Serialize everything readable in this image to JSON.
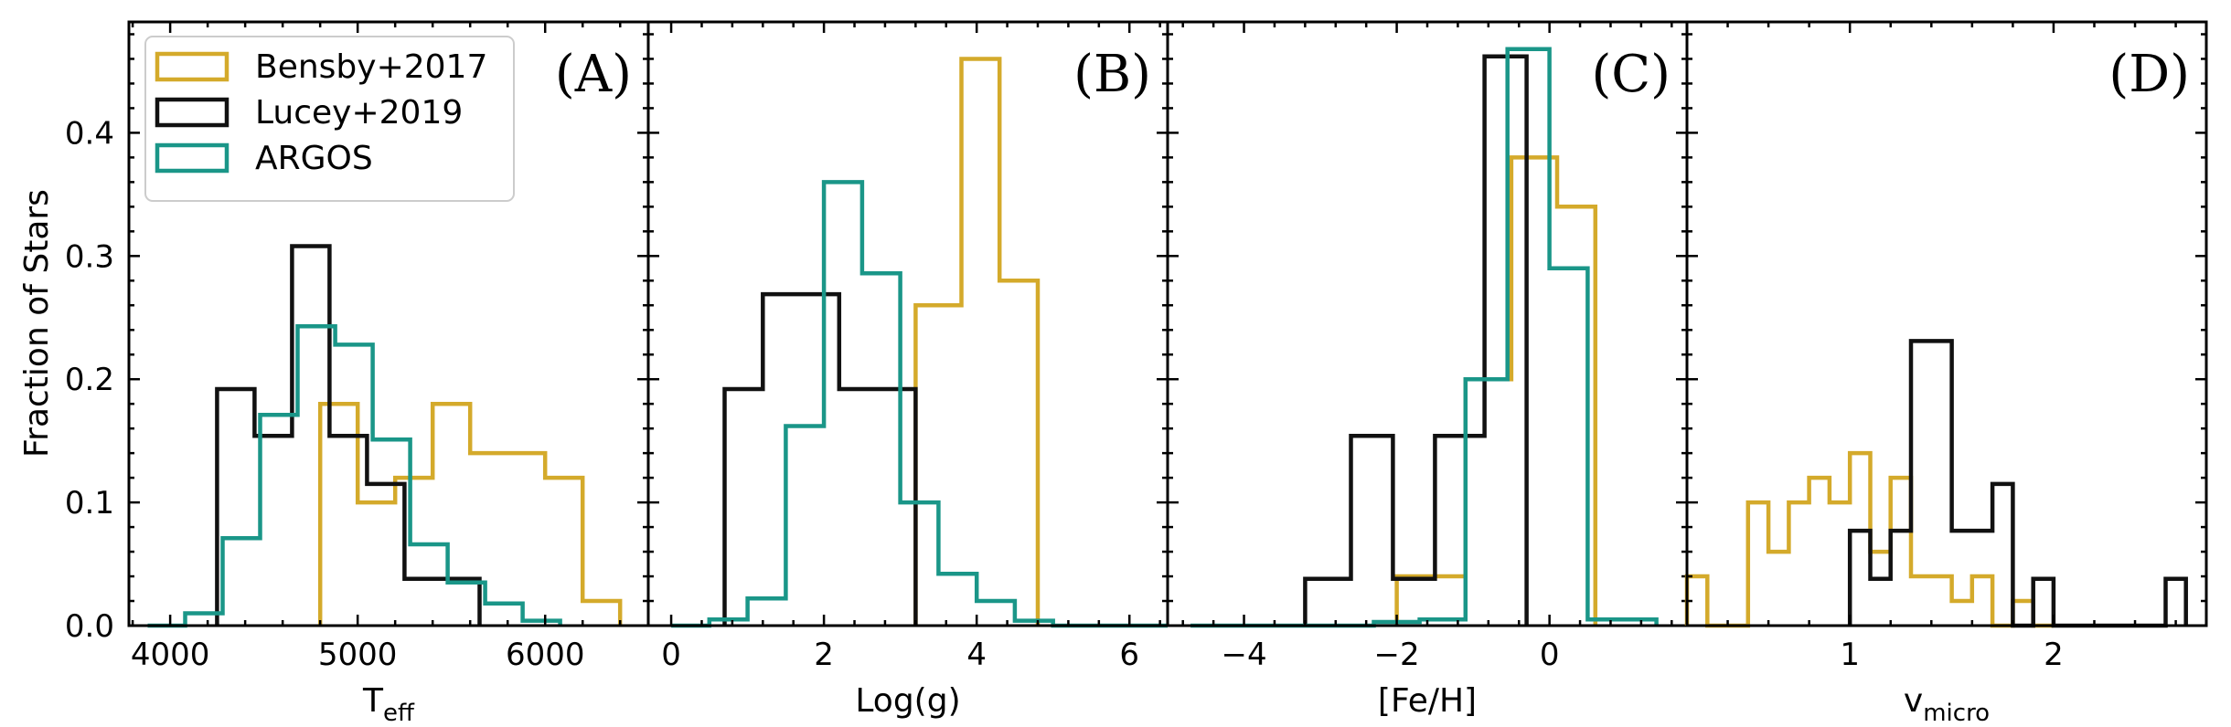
{
  "figure": {
    "ylabel": "Fraction of Stars",
    "colors": {
      "Bensby+2017": "#d4aa2b",
      "Lucey+2019": "#111111",
      "ARGOS": "#1a9688"
    },
    "legend": {
      "placement": "upper-left of panel A",
      "entries": [
        "Bensby+2017",
        "Lucey+2019",
        "ARGOS"
      ]
    }
  },
  "chart_data": [
    {
      "type": "histogram",
      "panel_label": "(A)",
      "xlabel_main": "T",
      "xlabel_sub": "eff",
      "xlim": [
        3780,
        6550
      ],
      "ylim": [
        0,
        0.49
      ],
      "xticks": [
        4000,
        5000,
        6000
      ],
      "xticklabels": [
        "4000",
        "5000",
        "6000"
      ],
      "yticks": [
        0.0,
        0.1,
        0.2,
        0.3,
        0.4
      ],
      "yticklabels": [
        "0.0",
        "0.1",
        "0.2",
        "0.3",
        "0.4"
      ],
      "series": [
        {
          "name": "Bensby+2017",
          "edges": [
            4800,
            4900,
            5000,
            5100,
            5200,
            5300,
            5400,
            5500,
            5600,
            5700,
            5800,
            5900,
            6000,
            6100,
            6200,
            6300,
            6400
          ],
          "values": [
            0.18,
            0.18,
            0.1,
            0.1,
            0.12,
            0.12,
            0.18,
            0.18,
            0.14,
            0.14,
            0.14,
            0.14,
            0.12,
            0.12,
            0.02,
            0.02
          ]
        },
        {
          "name": "Lucey+2019",
          "edges": [
            4250,
            4350,
            4450,
            4550,
            4650,
            4750,
            4850,
            4950,
            5050,
            5150,
            5250,
            5350,
            5450,
            5550,
            5650
          ],
          "values": [
            0.192,
            0.192,
            0.154,
            0.154,
            0.308,
            0.308,
            0.154,
            0.154,
            0.115,
            0.115,
            0.038,
            0.038,
            0.038,
            0.038
          ]
        },
        {
          "name": "ARGOS",
          "edges": [
            3880,
            3980,
            4080,
            4180,
            4280,
            4380,
            4480,
            4580,
            4680,
            4780,
            4880,
            4980,
            5080,
            5180,
            5280,
            5380,
            5480,
            5580,
            5680,
            5780,
            5880,
            5980,
            6080
          ],
          "values": [
            0.0,
            0.0,
            0.01,
            0.01,
            0.071,
            0.071,
            0.171,
            0.171,
            0.243,
            0.243,
            0.228,
            0.228,
            0.151,
            0.151,
            0.066,
            0.066,
            0.035,
            0.035,
            0.018,
            0.018,
            0.004,
            0.004
          ]
        }
      ]
    },
    {
      "type": "histogram",
      "panel_label": "(B)",
      "xlabel_main": "Log(g)",
      "xlabel_sub": "",
      "xlim": [
        -0.3,
        6.5
      ],
      "ylim": [
        0,
        0.49
      ],
      "xticks": [
        0,
        2,
        4,
        6
      ],
      "xticklabels": [
        "0",
        "2",
        "4",
        "6"
      ],
      "yticks": [
        0.0,
        0.1,
        0.2,
        0.3,
        0.4
      ],
      "yticklabels": [],
      "series": [
        {
          "name": "Bensby+2017",
          "edges": [
            3.2,
            3.4,
            3.8,
            4.0,
            4.3,
            4.5,
            4.8
          ],
          "values": [
            0.26,
            0.26,
            0.46,
            0.46,
            0.28,
            0.28
          ]
        },
        {
          "name": "Lucey+2019",
          "edges": [
            0.7,
            0.9,
            1.2,
            1.6,
            2.2,
            2.6,
            3.2
          ],
          "values": [
            0.192,
            0.192,
            0.269,
            0.269,
            0.192,
            0.192
          ]
        },
        {
          "name": "ARGOS",
          "edges": [
            0.0,
            0.5,
            1.0,
            1.5,
            2.0,
            2.5,
            3.0,
            3.5,
            4.0,
            4.5,
            5.0,
            6.5
          ],
          "values": [
            0.0,
            0.005,
            0.022,
            0.162,
            0.36,
            0.286,
            0.1,
            0.042,
            0.02,
            0.004,
            0.0
          ]
        }
      ]
    },
    {
      "type": "histogram",
      "panel_label": "(C)",
      "xlabel_main": "[Fe/H]",
      "xlabel_sub": "",
      "xlim": [
        -5.0,
        1.8
      ],
      "ylim": [
        0,
        0.49
      ],
      "xticks": [
        -4,
        -2,
        0
      ],
      "xticklabels": [
        "−4",
        "−2",
        "0"
      ],
      "yticks": [
        0.0,
        0.1,
        0.2,
        0.3,
        0.4
      ],
      "yticklabels": [],
      "series": [
        {
          "name": "Bensby+2017",
          "edges": [
            -2.0,
            -1.7,
            -1.4,
            -1.1,
            -0.8,
            -0.5,
            -0.2,
            0.1,
            0.3,
            0.6
          ],
          "values": [
            0.04,
            0.04,
            0.04,
            0.2,
            0.2,
            0.38,
            0.38,
            0.34,
            0.34
          ]
        },
        {
          "name": "Lucey+2019",
          "edges": [
            -3.2,
            -2.6,
            -2.05,
            -1.5,
            -0.85,
            -0.3
          ],
          "values": [
            0.038,
            0.154,
            0.038,
            0.154,
            0.462
          ]
        },
        {
          "name": "ARGOS",
          "edges": [
            -4.7,
            -4.1,
            -3.5,
            -2.9,
            -2.3,
            -1.7,
            -1.1,
            -0.55,
            0.0,
            0.5,
            1.4
          ],
          "values": [
            0.0,
            0.0,
            0.0,
            0.0,
            0.003,
            0.005,
            0.2,
            0.468,
            0.29,
            0.005
          ]
        }
      ]
    },
    {
      "type": "histogram",
      "panel_label": "(D)",
      "xlabel_main": "v",
      "xlabel_sub": "micro",
      "xlim": [
        0.2,
        2.75
      ],
      "ylim": [
        0,
        0.49
      ],
      "xticks": [
        1,
        2
      ],
      "xticklabels": [
        "1",
        "2"
      ],
      "yticks": [
        0.0,
        0.1,
        0.2,
        0.3,
        0.4
      ],
      "yticklabels": [],
      "series": [
        {
          "name": "Bensby+2017",
          "edges": [
            0.2,
            0.3,
            0.4,
            0.5,
            0.6,
            0.7,
            0.8,
            0.9,
            1.0,
            1.1,
            1.2,
            1.3,
            1.4,
            1.5,
            1.6,
            1.7,
            1.8,
            1.9,
            2.0
          ],
          "values": [
            0.04,
            0.0,
            0.0,
            0.1,
            0.06,
            0.1,
            0.12,
            0.1,
            0.14,
            0.06,
            0.12,
            0.04,
            0.04,
            0.02,
            0.04,
            0.0,
            0.02,
            0.0
          ]
        },
        {
          "name": "Lucey+2019",
          "edges": [
            1.0,
            1.1,
            1.2,
            1.3,
            1.5,
            1.7,
            1.8,
            1.9,
            2.0,
            2.1,
            2.25,
            2.4,
            2.55,
            2.65
          ],
          "values": [
            0.077,
            0.038,
            0.077,
            0.231,
            0.077,
            0.115,
            0.0,
            0.038,
            0.0,
            0.0,
            0.0,
            0.0,
            0.038
          ]
        }
      ]
    }
  ]
}
